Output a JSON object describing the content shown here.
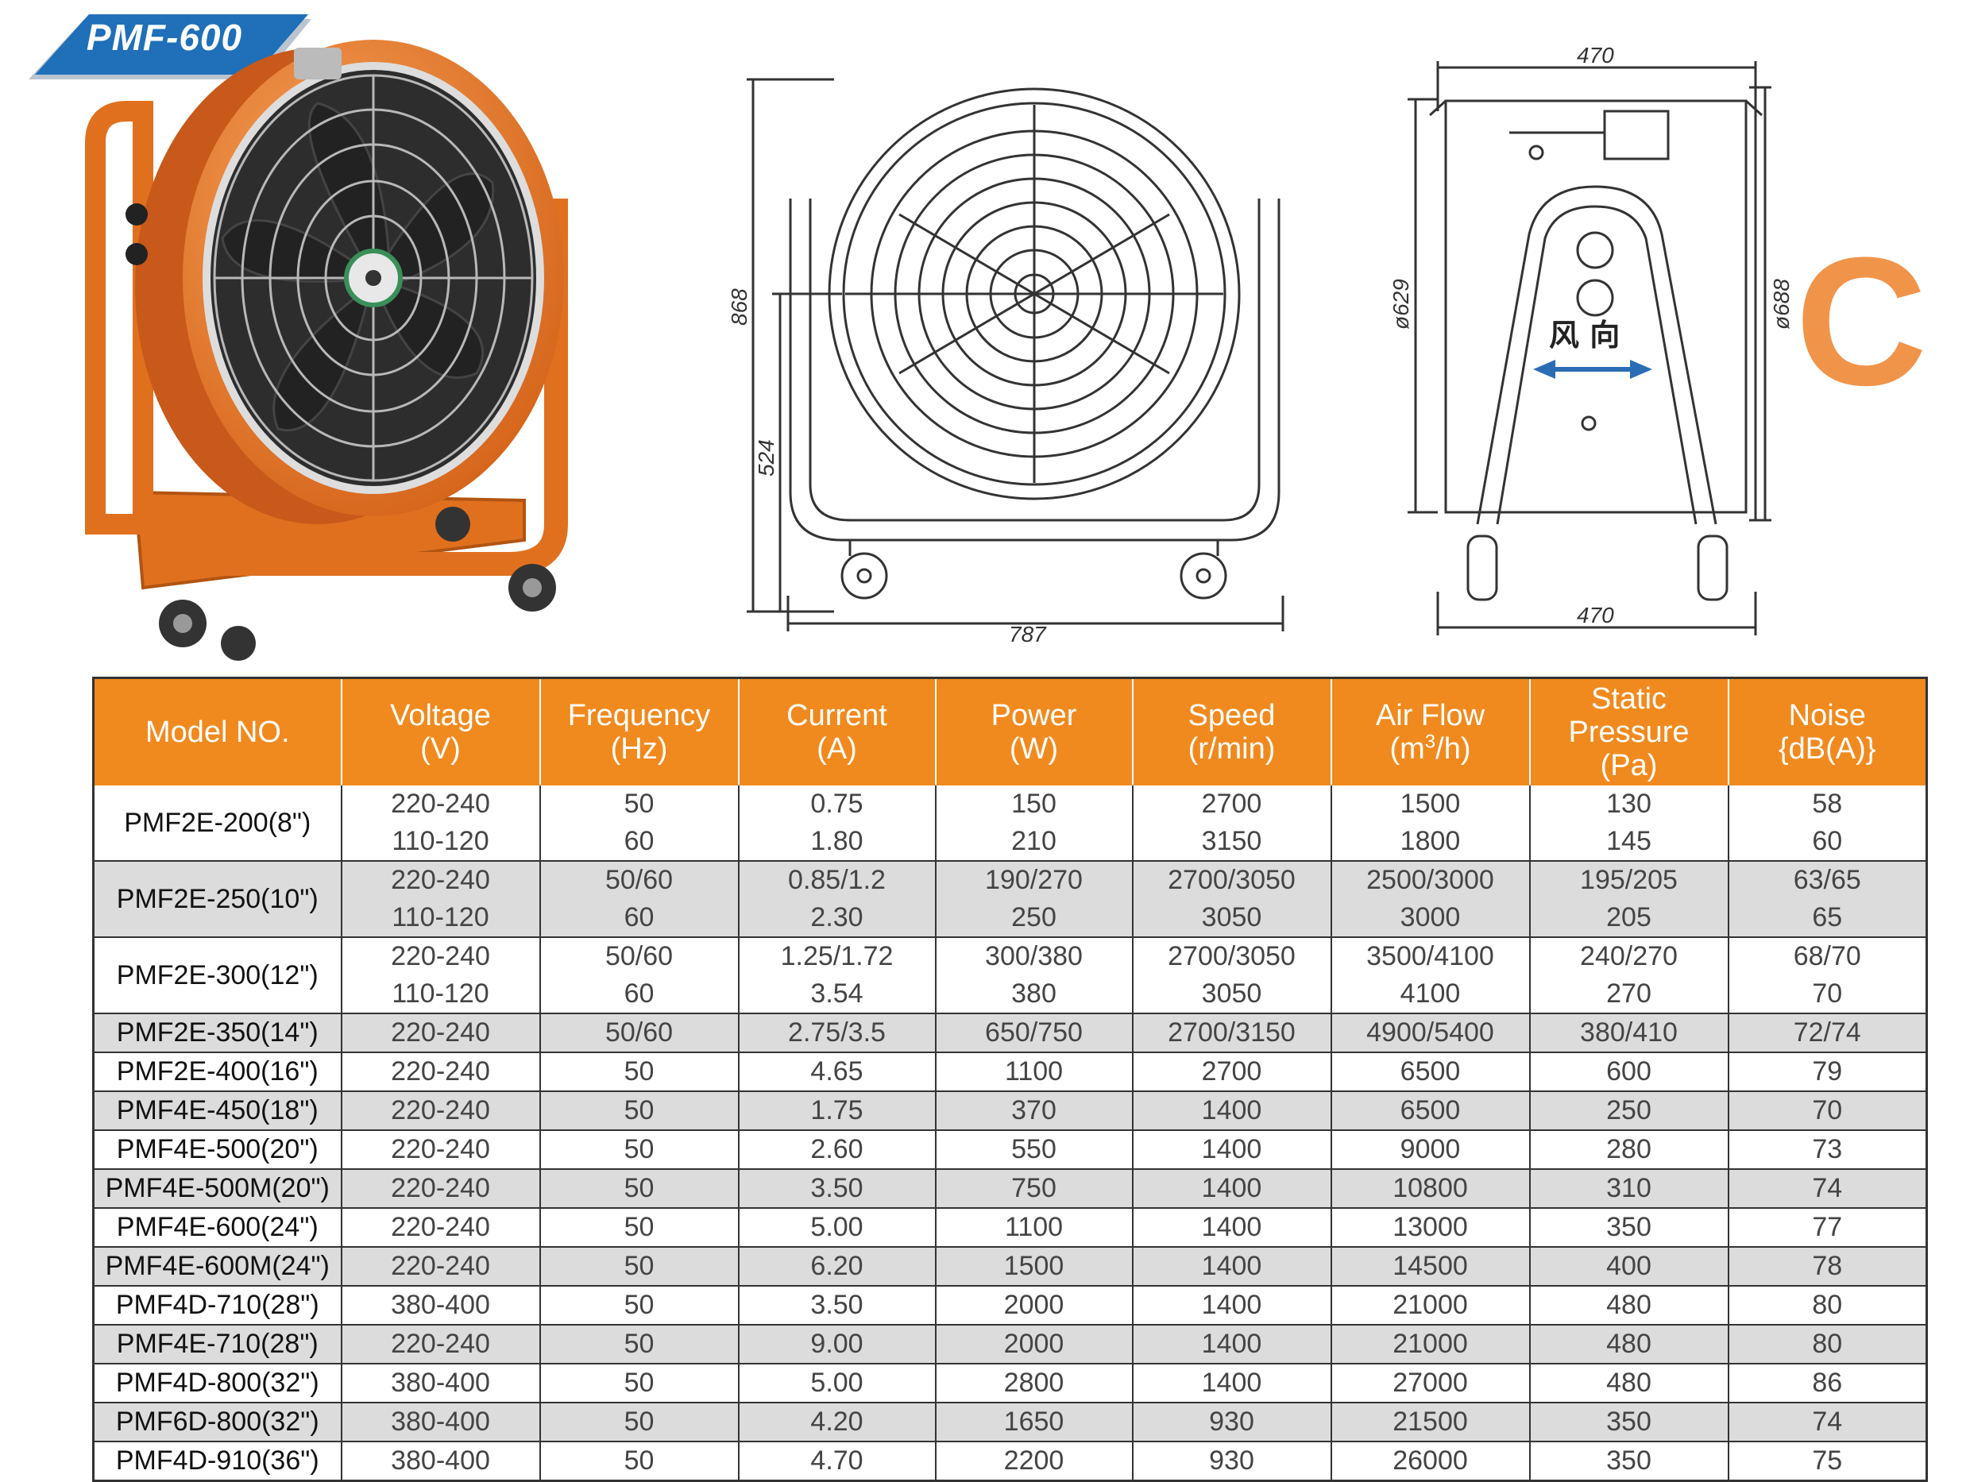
{
  "badge": {
    "model": "PMF-600"
  },
  "series_letter": "C",
  "front_view": {
    "width_label": "787",
    "height_label": "868",
    "axis_height_label": "524"
  },
  "side_view": {
    "top_label": "470",
    "bottom_label": "470",
    "inner_dia_label": "ø629",
    "outer_dia_label": "ø688",
    "wind_label": "风 向"
  },
  "table": {
    "headers": [
      {
        "line1": "Model NO.",
        "line2": ""
      },
      {
        "line1": "Voltage",
        "line2": "(V)"
      },
      {
        "line1": "Frequency",
        "line2": "(Hz)"
      },
      {
        "line1": "Current",
        "line2": "(A)"
      },
      {
        "line1": "Power",
        "line2": "(W)"
      },
      {
        "line1": "Speed",
        "line2": "(r/min)"
      },
      {
        "line1": "Air Flow",
        "line2": "(m³/h)"
      },
      {
        "line1": "Static",
        "line2": "Pressure",
        "line3": "(Pa)"
      },
      {
        "line1": "Noise",
        "line2": "{dB(A)}"
      }
    ],
    "rows": [
      {
        "model": "PMF2E-200(8\")",
        "values": [
          [
            "220-240",
            "50",
            "0.75",
            "150",
            "2700",
            "1500",
            "130",
            "58"
          ],
          [
            "110-120",
            "60",
            "1.80",
            "210",
            "3150",
            "1800",
            "145",
            "60"
          ]
        ]
      },
      {
        "model": "PMF2E-250(10\")",
        "values": [
          [
            "220-240",
            "50/60",
            "0.85/1.2",
            "190/270",
            "2700/3050",
            "2500/3000",
            "195/205",
            "63/65"
          ],
          [
            "110-120",
            "60",
            "2.30",
            "250",
            "3050",
            "3000",
            "205",
            "65"
          ]
        ]
      },
      {
        "model": "PMF2E-300(12\")",
        "values": [
          [
            "220-240",
            "50/60",
            "1.25/1.72",
            "300/380",
            "2700/3050",
            "3500/4100",
            "240/270",
            "68/70"
          ],
          [
            "110-120",
            "60",
            "3.54",
            "380",
            "3050",
            "4100",
            "270",
            "70"
          ]
        ]
      },
      {
        "model": "PMF2E-350(14\")",
        "values": [
          [
            "220-240",
            "50/60",
            "2.75/3.5",
            "650/750",
            "2700/3150",
            "4900/5400",
            "380/410",
            "72/74"
          ]
        ]
      },
      {
        "model": "PMF2E-400(16\")",
        "values": [
          [
            "220-240",
            "50",
            "4.65",
            "1100",
            "2700",
            "6500",
            "600",
            "79"
          ]
        ]
      },
      {
        "model": "PMF4E-450(18\")",
        "values": [
          [
            "220-240",
            "50",
            "1.75",
            "370",
            "1400",
            "6500",
            "250",
            "70"
          ]
        ]
      },
      {
        "model": "PMF4E-500(20\")",
        "values": [
          [
            "220-240",
            "50",
            "2.60",
            "550",
            "1400",
            "9000",
            "280",
            "73"
          ]
        ]
      },
      {
        "model": "PMF4E-500M(20\")",
        "values": [
          [
            "220-240",
            "50",
            "3.50",
            "750",
            "1400",
            "10800",
            "310",
            "74"
          ]
        ]
      },
      {
        "model": "PMF4E-600(24\")",
        "values": [
          [
            "220-240",
            "50",
            "5.00",
            "1100",
            "1400",
            "13000",
            "350",
            "77"
          ]
        ]
      },
      {
        "model": "PMF4E-600M(24\")",
        "values": [
          [
            "220-240",
            "50",
            "6.20",
            "1500",
            "1400",
            "14500",
            "400",
            "78"
          ]
        ]
      },
      {
        "model": "PMF4D-710(28\")",
        "values": [
          [
            "380-400",
            "50",
            "3.50",
            "2000",
            "1400",
            "21000",
            "480",
            "80"
          ]
        ]
      },
      {
        "model": "PMF4E-710(28\")",
        "values": [
          [
            "220-240",
            "50",
            "9.00",
            "2000",
            "1400",
            "21000",
            "480",
            "80"
          ]
        ]
      },
      {
        "model": "PMF4D-800(32\")",
        "values": [
          [
            "380-400",
            "50",
            "5.00",
            "2800",
            "1400",
            "27000",
            "480",
            "86"
          ]
        ]
      },
      {
        "model": "PMF6D-800(32\")",
        "values": [
          [
            "380-400",
            "50",
            "4.20",
            "1650",
            "930",
            "21500",
            "350",
            "74"
          ]
        ]
      },
      {
        "model": "PMF4D-910(36\")",
        "values": [
          [
            "380-400",
            "50",
            "4.70",
            "2200",
            "930",
            "26000",
            "350",
            "75"
          ]
        ]
      }
    ]
  }
}
